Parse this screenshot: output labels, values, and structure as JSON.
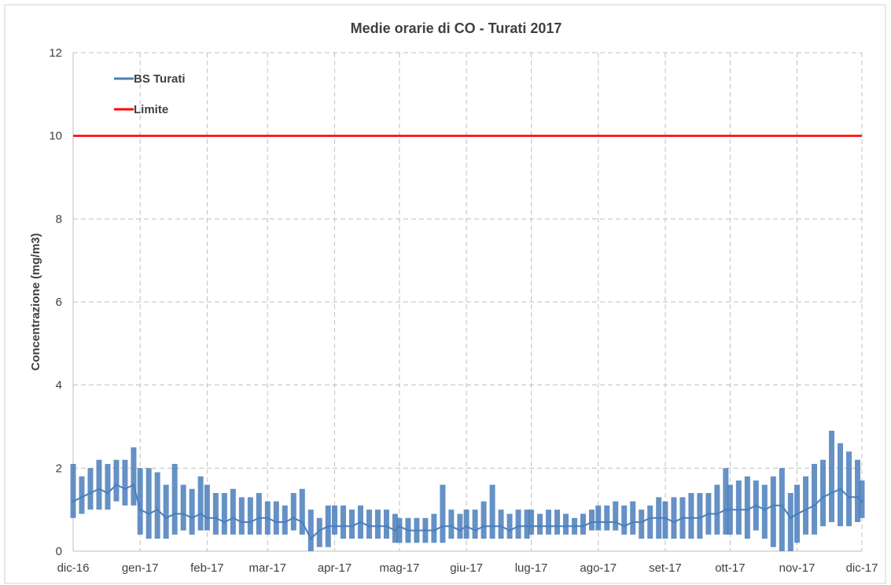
{
  "chart_data": {
    "type": "line",
    "title": "Medie orarie di CO - Turati 2017",
    "xlabel": "",
    "ylabel": "Concentrazione (mg/m3)",
    "ylim": [
      0,
      12
    ],
    "yticks": [
      0,
      2,
      4,
      6,
      8,
      10,
      12
    ],
    "xlim": [
      "2016-12-01",
      "2017-12-01"
    ],
    "xticks": [
      {
        "date": "2016-12-01",
        "label": "dic-16"
      },
      {
        "date": "2017-01-01",
        "label": "gen-17"
      },
      {
        "date": "2017-02-01",
        "label": "feb-17"
      },
      {
        "date": "2017-03-01",
        "label": "mar-17"
      },
      {
        "date": "2017-04-01",
        "label": "apr-17"
      },
      {
        "date": "2017-05-01",
        "label": "mag-17"
      },
      {
        "date": "2017-06-01",
        "label": "giu-17"
      },
      {
        "date": "2017-07-01",
        "label": "lug-17"
      },
      {
        "date": "2017-08-01",
        "label": "ago-17"
      },
      {
        "date": "2017-09-01",
        "label": "set-17"
      },
      {
        "date": "2017-10-01",
        "label": "ott-17"
      },
      {
        "date": "2017-11-01",
        "label": "nov-17"
      },
      {
        "date": "2017-12-01",
        "label": "dic-17"
      }
    ],
    "grid": true,
    "legend_position": "top-left",
    "series": [
      {
        "name": "BS Turati",
        "color": "#4a7ebb",
        "x": [
          "2016-12-01",
          "2016-12-05",
          "2016-12-09",
          "2016-12-13",
          "2016-12-17",
          "2016-12-21",
          "2016-12-25",
          "2016-12-29",
          "2017-01-01",
          "2017-01-05",
          "2017-01-09",
          "2017-01-13",
          "2017-01-17",
          "2017-01-21",
          "2017-01-25",
          "2017-01-29",
          "2017-02-01",
          "2017-02-05",
          "2017-02-09",
          "2017-02-13",
          "2017-02-17",
          "2017-02-21",
          "2017-02-25",
          "2017-03-01",
          "2017-03-05",
          "2017-03-09",
          "2017-03-13",
          "2017-03-17",
          "2017-03-21",
          "2017-03-25",
          "2017-03-29",
          "2017-04-01",
          "2017-04-05",
          "2017-04-09",
          "2017-04-13",
          "2017-04-17",
          "2017-04-21",
          "2017-04-25",
          "2017-04-29",
          "2017-05-01",
          "2017-05-05",
          "2017-05-09",
          "2017-05-13",
          "2017-05-17",
          "2017-05-21",
          "2017-05-25",
          "2017-05-29",
          "2017-06-01",
          "2017-06-05",
          "2017-06-09",
          "2017-06-13",
          "2017-06-17",
          "2017-06-21",
          "2017-06-25",
          "2017-06-29",
          "2017-07-01",
          "2017-07-05",
          "2017-07-09",
          "2017-07-13",
          "2017-07-17",
          "2017-07-21",
          "2017-07-25",
          "2017-07-29",
          "2017-08-01",
          "2017-08-05",
          "2017-08-09",
          "2017-08-13",
          "2017-08-17",
          "2017-08-21",
          "2017-08-25",
          "2017-08-29",
          "2017-09-01",
          "2017-09-05",
          "2017-09-09",
          "2017-09-13",
          "2017-09-17",
          "2017-09-21",
          "2017-09-25",
          "2017-09-29",
          "2017-10-01",
          "2017-10-05",
          "2017-10-09",
          "2017-10-13",
          "2017-10-17",
          "2017-10-21",
          "2017-10-25",
          "2017-10-29",
          "2017-11-01",
          "2017-11-05",
          "2017-11-09",
          "2017-11-13",
          "2017-11-17",
          "2017-11-21",
          "2017-11-25",
          "2017-11-29",
          "2017-12-01"
        ],
        "values": [
          1.2,
          1.3,
          1.4,
          1.5,
          1.4,
          1.6,
          1.5,
          1.6,
          1.0,
          0.9,
          1.0,
          0.8,
          0.9,
          0.9,
          0.8,
          0.9,
          0.8,
          0.8,
          0.7,
          0.8,
          0.7,
          0.7,
          0.8,
          0.8,
          0.7,
          0.7,
          0.8,
          0.7,
          0.3,
          0.5,
          0.6,
          0.6,
          0.6,
          0.6,
          0.7,
          0.6,
          0.6,
          0.6,
          0.5,
          0.6,
          0.5,
          0.5,
          0.5,
          0.5,
          0.6,
          0.6,
          0.5,
          0.6,
          0.5,
          0.6,
          0.6,
          0.6,
          0.5,
          0.6,
          0.6,
          0.6,
          0.6,
          0.6,
          0.6,
          0.6,
          0.6,
          0.6,
          0.7,
          0.7,
          0.7,
          0.7,
          0.6,
          0.7,
          0.7,
          0.8,
          0.8,
          0.8,
          0.7,
          0.8,
          0.8,
          0.8,
          0.9,
          0.9,
          1.0,
          1.0,
          1.0,
          1.0,
          1.1,
          1.0,
          1.1,
          1.1,
          0.8,
          0.9,
          1.0,
          1.1,
          1.3,
          1.4,
          1.5,
          1.3,
          1.3,
          1.2
        ],
        "low": [
          0.8,
          0.9,
          1.0,
          1.0,
          1.0,
          1.2,
          1.1,
          1.1,
          0.4,
          0.3,
          0.3,
          0.3,
          0.4,
          0.5,
          0.4,
          0.5,
          0.5,
          0.4,
          0.4,
          0.4,
          0.4,
          0.4,
          0.4,
          0.4,
          0.4,
          0.4,
          0.5,
          0.4,
          0.0,
          0.1,
          0.1,
          0.4,
          0.3,
          0.3,
          0.3,
          0.3,
          0.3,
          0.3,
          0.2,
          0.2,
          0.2,
          0.2,
          0.2,
          0.2,
          0.2,
          0.3,
          0.3,
          0.3,
          0.3,
          0.3,
          0.3,
          0.3,
          0.3,
          0.3,
          0.3,
          0.4,
          0.4,
          0.4,
          0.4,
          0.4,
          0.4,
          0.4,
          0.5,
          0.5,
          0.5,
          0.5,
          0.4,
          0.4,
          0.3,
          0.3,
          0.3,
          0.3,
          0.3,
          0.3,
          0.3,
          0.3,
          0.4,
          0.4,
          0.4,
          0.4,
          0.4,
          0.3,
          0.5,
          0.3,
          0.1,
          0.0,
          0.0,
          0.2,
          0.4,
          0.4,
          0.6,
          0.7,
          0.6,
          0.6,
          0.7,
          0.8
        ],
        "high": [
          2.1,
          1.8,
          2.0,
          2.2,
          2.1,
          2.2,
          2.2,
          2.5,
          2.0,
          2.0,
          1.9,
          1.6,
          2.1,
          1.6,
          1.5,
          1.8,
          1.6,
          1.4,
          1.4,
          1.5,
          1.3,
          1.3,
          1.4,
          1.2,
          1.2,
          1.1,
          1.4,
          1.5,
          1.0,
          0.8,
          1.1,
          1.1,
          1.1,
          1.0,
          1.1,
          1.0,
          1.0,
          1.0,
          0.9,
          0.8,
          0.8,
          0.8,
          0.8,
          0.9,
          1.6,
          1.0,
          0.9,
          1.0,
          1.0,
          1.2,
          1.6,
          1.0,
          0.9,
          1.0,
          1.0,
          1.0,
          0.9,
          1.0,
          1.0,
          0.9,
          0.8,
          0.9,
          1.0,
          1.1,
          1.1,
          1.2,
          1.1,
          1.2,
          1.0,
          1.1,
          1.3,
          1.2,
          1.3,
          1.3,
          1.4,
          1.4,
          1.4,
          1.6,
          2.0,
          1.6,
          1.7,
          1.8,
          1.7,
          1.6,
          1.8,
          2.0,
          1.4,
          1.6,
          1.8,
          2.1,
          2.2,
          2.9,
          2.6,
          2.4,
          2.2,
          1.7
        ]
      },
      {
        "name": "Limite",
        "color": "#ff0000",
        "x": [
          "2016-12-01",
          "2017-12-01"
        ],
        "values": [
          10,
          10
        ]
      }
    ]
  }
}
